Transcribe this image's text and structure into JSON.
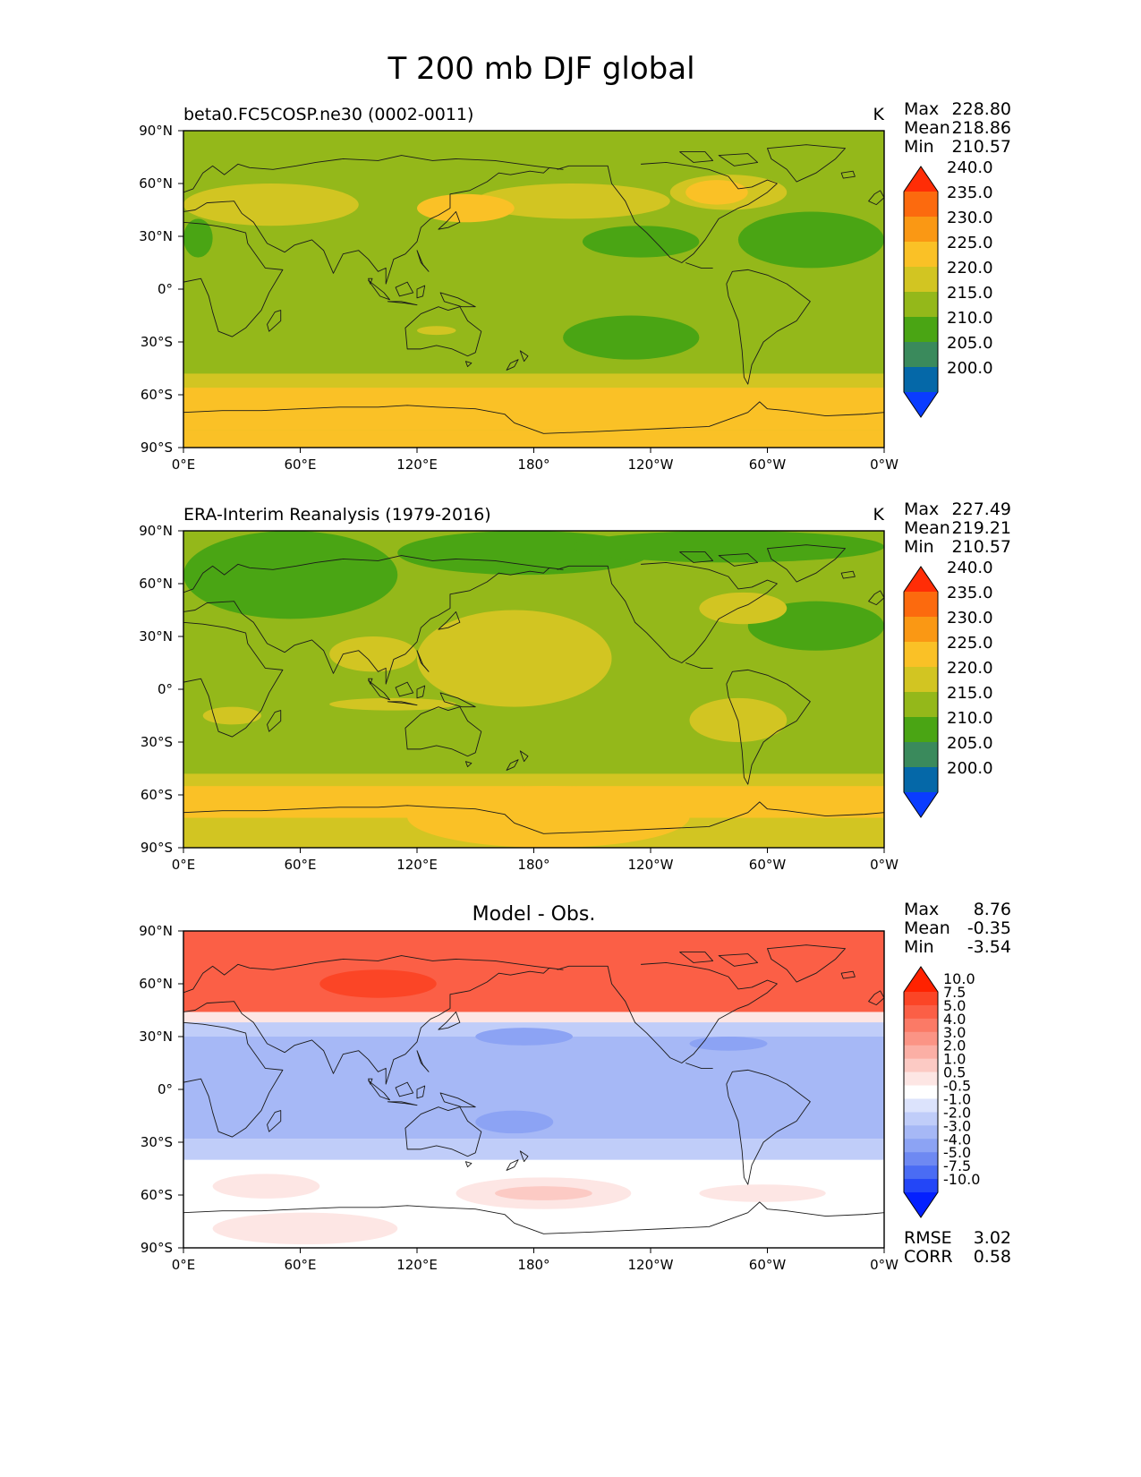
{
  "chart_data": {
    "type": "heatmap",
    "title": "T 200 mb DJF global",
    "x_ticks": [
      "0°E",
      "60°E",
      "120°E",
      "180°",
      "120°W",
      "60°W",
      "0°W"
    ],
    "y_ticks": [
      "90°N",
      "60°N",
      "30°N",
      "0°",
      "30°S",
      "60°S",
      "90°S"
    ],
    "xlim": [
      0,
      360
    ],
    "ylim": [
      -90,
      90
    ],
    "panels": [
      {
        "id": "test",
        "title_left": "beta0.FC5COSP.ne30 (0002-0011)",
        "title_center": "",
        "units": "K",
        "stats": [
          {
            "label": "Max",
            "value": "228.80"
          },
          {
            "label": "Mean",
            "value": "218.86"
          },
          {
            "label": "Min",
            "value": "210.57"
          }
        ],
        "levels": [
          "200.0",
          "205.0",
          "210.0",
          "215.0",
          "220.0",
          "225.0",
          "230.0",
          "235.0",
          "240.0"
        ],
        "colors": [
          "#0a3cff",
          "#0568a8",
          "#3a8a5c",
          "#4aa514",
          "#94b81a",
          "#d2c522",
          "#fac126",
          "#fa9814",
          "#fc6a0e",
          "#ff2d06"
        ],
        "background_color": "#94b81a",
        "regions": [
          {
            "lon": [
              0,
              360
            ],
            "lat": [
              50,
              90
            ],
            "color": "#94b81a"
          },
          {
            "lon": [
              150,
              250
            ],
            "lat": [
              40,
              60
            ],
            "color": "#d2c522"
          },
          {
            "lon": [
              120,
              170
            ],
            "lat": [
              38,
              54
            ],
            "color": "#fac126"
          },
          {
            "lon": [
              250,
              310
            ],
            "lat": [
              45,
              65
            ],
            "color": "#d2c522"
          },
          {
            "lon": [
              258,
              290
            ],
            "lat": [
              48,
              62
            ],
            "color": "#fac126"
          },
          {
            "lon": [
              205,
              265
            ],
            "lat": [
              18,
              36
            ],
            "color": "#4aa514"
          },
          {
            "lon": [
              285,
              360
            ],
            "lat": [
              12,
              44
            ],
            "color": "#4aa514"
          },
          {
            "lon": [
              0,
              15
            ],
            "lat": [
              18,
              40
            ],
            "color": "#4aa514"
          },
          {
            "lon": [
              0,
              90
            ],
            "lat": [
              36,
              60
            ],
            "color": "#d2c522"
          },
          {
            "lon": [
              195,
              265
            ],
            "lat": [
              -40,
              -15
            ],
            "color": "#4aa514"
          },
          {
            "lon": [
              120,
              140
            ],
            "lat": [
              -26,
              -21
            ],
            "color": "#d2c522"
          },
          {
            "lon": [
              0,
              360
            ],
            "lat": [
              -90,
              -48
            ],
            "color": "#d2c522"
          },
          {
            "lon": [
              0,
              360
            ],
            "lat": [
              -80,
              -56
            ],
            "color": "#fac126"
          },
          {
            "lon": [
              0,
              360
            ],
            "lat": [
              -90,
              -80
            ],
            "color": "#fac126"
          }
        ]
      },
      {
        "id": "reference",
        "title_left": "ERA-Interim Reanalysis (1979-2016)",
        "title_center": "",
        "units": "K",
        "stats": [
          {
            "label": "Max",
            "value": "227.49"
          },
          {
            "label": "Mean",
            "value": "219.21"
          },
          {
            "label": "Min",
            "value": "210.57"
          }
        ],
        "levels": [
          "200.0",
          "205.0",
          "210.0",
          "215.0",
          "220.0",
          "225.0",
          "230.0",
          "235.0",
          "240.0"
        ],
        "colors": [
          "#0a3cff",
          "#0568a8",
          "#3a8a5c",
          "#4aa514",
          "#94b81a",
          "#d2c522",
          "#fac126",
          "#fa9814",
          "#fc6a0e",
          "#ff2d06"
        ],
        "background_color": "#94b81a",
        "regions": [
          {
            "lon": [
              0,
              110
            ],
            "lat": [
              40,
              90
            ],
            "color": "#4aa514"
          },
          {
            "lon": [
              110,
              240
            ],
            "lat": [
              65,
              90
            ],
            "color": "#4aa514"
          },
          {
            "lon": [
              200,
              360
            ],
            "lat": [
              72,
              90
            ],
            "color": "#4aa514"
          },
          {
            "lon": [
              290,
              360
            ],
            "lat": [
              22,
              50
            ],
            "color": "#4aa514"
          },
          {
            "lon": [
              120,
              220
            ],
            "lat": [
              -10,
              45
            ],
            "color": "#d2c522"
          },
          {
            "lon": [
              75,
              120
            ],
            "lat": [
              10,
              30
            ],
            "color": "#d2c522"
          },
          {
            "lon": [
              75,
              140
            ],
            "lat": [
              -12,
              -5
            ],
            "color": "#d2c522"
          },
          {
            "lon": [
              10,
              40
            ],
            "lat": [
              -20,
              -10
            ],
            "color": "#d2c522"
          },
          {
            "lon": [
              260,
              310
            ],
            "lat": [
              -30,
              -5
            ],
            "color": "#d2c522"
          },
          {
            "lon": [
              265,
              310
            ],
            "lat": [
              37,
              55
            ],
            "color": "#d2c522"
          },
          {
            "lon": [
              0,
              360
            ],
            "lat": [
              -90,
              -48
            ],
            "color": "#d2c522"
          },
          {
            "lon": [
              0,
              360
            ],
            "lat": [
              -73,
              -55
            ],
            "color": "#fac126"
          },
          {
            "lon": [
              115,
              260
            ],
            "lat": [
              -90,
              -55
            ],
            "color": "#fac126"
          }
        ]
      },
      {
        "id": "diff",
        "title_left": "",
        "title_center": "Model - Obs.",
        "units": "",
        "stats": [
          {
            "label": "Max",
            "value": "8.76"
          },
          {
            "label": "Mean",
            "value": "-0.35"
          },
          {
            "label": "Min",
            "value": "-3.54"
          }
        ],
        "metrics": [
          {
            "label": "RMSE",
            "value": "3.02"
          },
          {
            "label": "CORR",
            "value": "0.58"
          }
        ],
        "levels": [
          "-10.0",
          "-7.5",
          "-5.0",
          "-4.0",
          "-3.0",
          "-2.0",
          "-1.0",
          "-0.5",
          "0.5",
          "1.0",
          "2.0",
          "3.0",
          "4.0",
          "5.0",
          "7.5",
          "10.0"
        ],
        "colors": [
          "#0420ff",
          "#2346f7",
          "#4a6cf4",
          "#6e89f2",
          "#8ca3f4",
          "#a6b8f6",
          "#c0cdf9",
          "#dce3fc",
          "#ffffff",
          "#fde6e4",
          "#fccac4",
          "#fbafa5",
          "#fb9485",
          "#fb7a66",
          "#fb5f46",
          "#fb4526",
          "#ff2200"
        ],
        "background_color": "#ffffff",
        "regions": [
          {
            "lon": [
              0,
              360
            ],
            "lat": [
              40,
              90
            ],
            "color": "#fb5f46"
          },
          {
            "lon": [
              70,
              130
            ],
            "lat": [
              52,
              68
            ],
            "color": "#fb4526"
          },
          {
            "lon": [
              0,
              360
            ],
            "lat": [
              38,
              44
            ],
            "color": "#fde6e4"
          },
          {
            "lon": [
              0,
              360
            ],
            "lat": [
              -28,
              38
            ],
            "color": "#a6b8f6"
          },
          {
            "lon": [
              0,
              360
            ],
            "lat": [
              30,
              38
            ],
            "color": "#c0cdf9"
          },
          {
            "lon": [
              150,
              200
            ],
            "lat": [
              25,
              35
            ],
            "color": "#8ca3f4"
          },
          {
            "lon": [
              260,
              300
            ],
            "lat": [
              22,
              30
            ],
            "color": "#8ca3f4"
          },
          {
            "lon": [
              150,
              190
            ],
            "lat": [
              -25,
              -12
            ],
            "color": "#8ca3f4"
          },
          {
            "lon": [
              0,
              360
            ],
            "lat": [
              -40,
              -28
            ],
            "color": "#c0cdf9"
          },
          {
            "lon": [
              15,
              70
            ],
            "lat": [
              -62,
              -48
            ],
            "color": "#fde6e4"
          },
          {
            "lon": [
              140,
              230
            ],
            "lat": [
              -68,
              -50
            ],
            "color": "#fde6e4"
          },
          {
            "lon": [
              160,
              210
            ],
            "lat": [
              -63,
              -55
            ],
            "color": "#fccac4"
          },
          {
            "lon": [
              265,
              330
            ],
            "lat": [
              -64,
              -54
            ],
            "color": "#fde6e4"
          },
          {
            "lon": [
              15,
              110
            ],
            "lat": [
              -88,
              -70
            ],
            "color": "#fde6e4"
          }
        ]
      }
    ]
  }
}
